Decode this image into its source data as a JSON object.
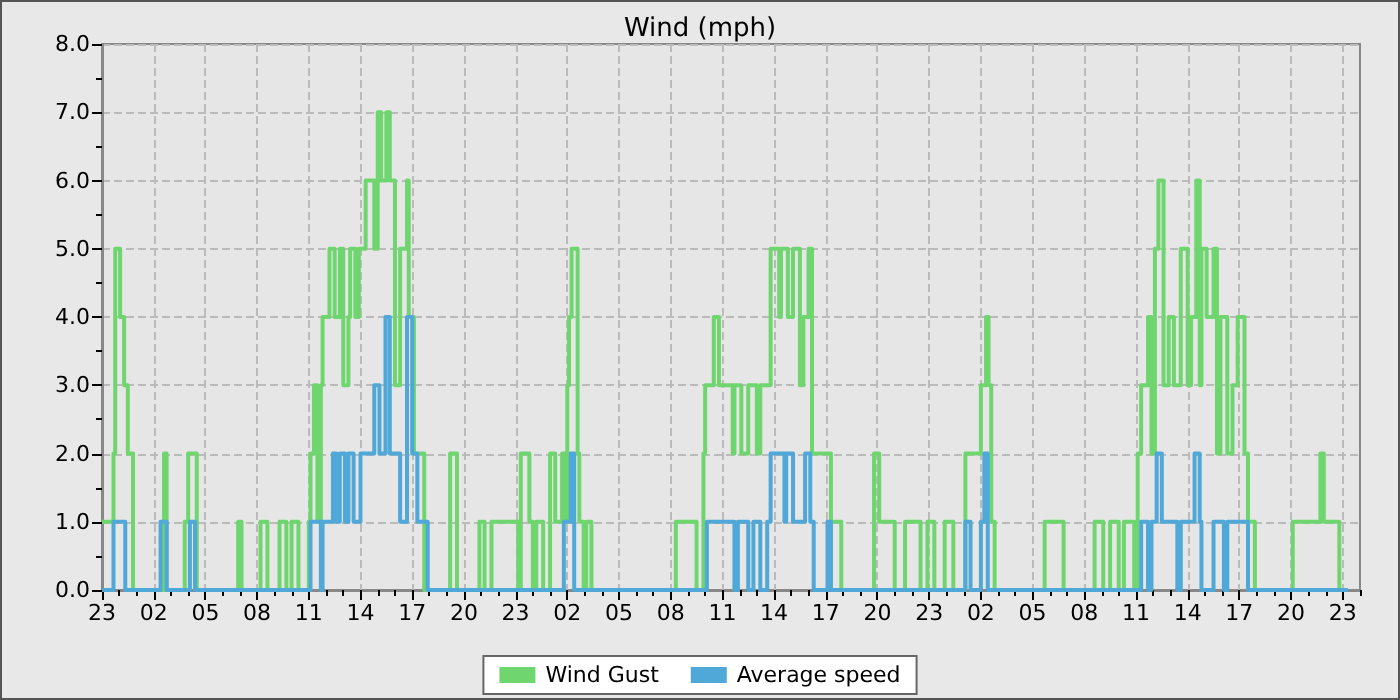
{
  "chart_data": {
    "type": "step",
    "title": "Wind (mph)",
    "xlim": [
      "--01-01T23:00",
      "--01-05T00:00"
    ],
    "ylim": [
      0,
      8
    ],
    "xticks": [
      {
        "value": "--01-01T23:00",
        "label": "23"
      },
      {
        "value": "--01-02T00:00",
        "label": null
      },
      {
        "value": "--01-02T01:00",
        "label": null
      },
      {
        "value": "--01-02T02:00",
        "label": "02"
      },
      {
        "value": "--01-02T03:00",
        "label": null
      },
      {
        "value": "--01-02T04:00",
        "label": null
      },
      {
        "value": "--01-02T05:00",
        "label": "05"
      },
      {
        "value": "--01-02T06:00",
        "label": null
      },
      {
        "value": "--01-02T07:00",
        "label": null
      },
      {
        "value": "--01-02T08:00",
        "label": "08"
      },
      {
        "value": "--01-02T09:00",
        "label": null
      },
      {
        "value": "--01-02T10:00",
        "label": null
      },
      {
        "value": "--01-02T11:00",
        "label": "11"
      },
      {
        "value": "--01-02T12:00",
        "label": null
      },
      {
        "value": "--01-02T13:00",
        "label": null
      },
      {
        "value": "--01-02T14:00",
        "label": "14"
      },
      {
        "value": "--01-02T15:00",
        "label": null
      },
      {
        "value": "--01-02T16:00",
        "label": null
      },
      {
        "value": "--01-02T17:00",
        "label": "17"
      },
      {
        "value": "--01-02T18:00",
        "label": null
      },
      {
        "value": "--01-02T19:00",
        "label": null
      },
      {
        "value": "--01-02T20:00",
        "label": "20"
      },
      {
        "value": "--01-02T21:00",
        "label": null
      },
      {
        "value": "--01-02T22:00",
        "label": null
      },
      {
        "value": "--01-02T23:00",
        "label": "23"
      },
      {
        "value": "--01-03T00:00",
        "label": null
      },
      {
        "value": "--01-03T01:00",
        "label": null
      },
      {
        "value": "--01-03T02:00",
        "label": "02"
      },
      {
        "value": "--01-03T03:00",
        "label": null
      },
      {
        "value": "--01-03T04:00",
        "label": null
      },
      {
        "value": "--01-03T05:00",
        "label": "05"
      },
      {
        "value": "--01-03T06:00",
        "label": null
      },
      {
        "value": "--01-03T07:00",
        "label": null
      },
      {
        "value": "--01-03T08:00",
        "label": "08"
      },
      {
        "value": "--01-03T09:00",
        "label": null
      },
      {
        "value": "--01-03T10:00",
        "label": null
      },
      {
        "value": "--01-03T11:00",
        "label": "11"
      },
      {
        "value": "--01-03T12:00",
        "label": null
      },
      {
        "value": "--01-03T13:00",
        "label": null
      },
      {
        "value": "--01-03T14:00",
        "label": "14"
      },
      {
        "value": "--01-03T15:00",
        "label": null
      },
      {
        "value": "--01-03T16:00",
        "label": null
      },
      {
        "value": "--01-03T17:00",
        "label": "17"
      },
      {
        "value": "--01-03T18:00",
        "label": null
      },
      {
        "value": "--01-03T19:00",
        "label": null
      },
      {
        "value": "--01-03T20:00",
        "label": "20"
      },
      {
        "value": "--01-03T21:00",
        "label": null
      },
      {
        "value": "--01-03T22:00",
        "label": null
      },
      {
        "value": "--01-03T23:00",
        "label": "23"
      },
      {
        "value": "--01-04T00:00",
        "label": null
      },
      {
        "value": "--01-04T01:00",
        "label": null
      },
      {
        "value": "--01-04T02:00",
        "label": "02"
      },
      {
        "value": "--01-04T03:00",
        "label": null
      },
      {
        "value": "--01-04T04:00",
        "label": null
      },
      {
        "value": "--01-04T05:00",
        "label": "05"
      },
      {
        "value": "--01-04T06:00",
        "label": null
      },
      {
        "value": "--01-04T07:00",
        "label": null
      },
      {
        "value": "--01-04T08:00",
        "label": "08"
      },
      {
        "value": "--01-04T09:00",
        "label": null
      },
      {
        "value": "--01-04T10:00",
        "label": null
      },
      {
        "value": "--01-04T11:00",
        "label": "11"
      },
      {
        "value": "--01-04T12:00",
        "label": null
      },
      {
        "value": "--01-04T13:00",
        "label": null
      },
      {
        "value": "--01-04T14:00",
        "label": "14"
      },
      {
        "value": "--01-04T15:00",
        "label": null
      },
      {
        "value": "--01-04T16:00",
        "label": null
      },
      {
        "value": "--01-04T17:00",
        "label": "17"
      },
      {
        "value": "--01-04T18:00",
        "label": null
      },
      {
        "value": "--01-04T19:00",
        "label": null
      },
      {
        "value": "--01-04T20:00",
        "label": "20"
      },
      {
        "value": "--01-04T21:00",
        "label": null
      },
      {
        "value": "--01-04T22:00",
        "label": null
      },
      {
        "value": "--01-04T23:00",
        "label": "23"
      },
      {
        "value": "--01-05T00:00",
        "label": null
      }
    ],
    "yticks": [
      {
        "value": 0,
        "label": "0.0"
      },
      {
        "value": 0.5,
        "label": null
      },
      {
        "value": 1,
        "label": "1.0"
      },
      {
        "value": 1.5,
        "label": null
      },
      {
        "value": 2,
        "label": "2.0"
      },
      {
        "value": 2.5,
        "label": null
      },
      {
        "value": 3,
        "label": "3.0"
      },
      {
        "value": 3.5,
        "label": null
      },
      {
        "value": 4,
        "label": "4.0"
      },
      {
        "value": 4.5,
        "label": null
      },
      {
        "value": 5,
        "label": "5.0"
      },
      {
        "value": 5.5,
        "label": null
      },
      {
        "value": 6,
        "label": "6.0"
      },
      {
        "value": 6.5,
        "label": null
      },
      {
        "value": 7,
        "label": "7.0"
      },
      {
        "value": 7.5,
        "label": null
      },
      {
        "value": 8,
        "label": "8.0"
      }
    ],
    "grid": true,
    "legend": "bottom",
    "line_style": "solid",
    "series": [
      {
        "name": "Wind Gust",
        "color": "#6fd66f",
        "x": [
          "--01-01T23:00",
          "--01-01T23:40",
          "--01-01T23:46",
          "--01-02T00:03",
          "--01-02T00:17",
          "--01-02T00:30",
          "--01-02T00:48",
          "--01-02T02:36",
          "--01-02T02:45",
          "--01-02T03:48",
          "--01-02T04:00",
          "--01-02T04:30",
          "--01-02T06:54",
          "--01-02T07:06",
          "--01-02T08:12",
          "--01-02T08:36",
          "--01-02T09:18",
          "--01-02T09:42",
          "--01-02T10:00",
          "--01-02T10:24",
          "--01-02T11:00",
          "--01-02T11:06",
          "--01-02T11:18",
          "--01-02T11:30",
          "--01-02T11:42",
          "--01-02T11:48",
          "--01-02T12:12",
          "--01-02T12:30",
          "--01-02T12:48",
          "--01-02T13:00",
          "--01-02T13:18",
          "--01-02T13:24",
          "--01-02T13:42",
          "--01-02T13:54",
          "--01-02T14:18",
          "--01-02T14:48",
          "--01-02T15:00",
          "--01-02T15:12",
          "--01-02T15:30",
          "--01-02T15:42",
          "--01-02T16:00",
          "--01-02T16:18",
          "--01-02T16:42",
          "--01-02T16:48",
          "--01-02T17:06",
          "--01-02T17:42",
          "--01-02T19:12",
          "--01-02T19:36",
          "--01-02T20:54",
          "--01-02T21:12",
          "--01-02T21:36",
          "--01-02T23:09",
          "--01-02T23:18",
          "--01-02T23:48",
          "--01-03T00:00",
          "--01-03T00:12",
          "--01-03T00:36",
          "--01-03T01:00",
          "--01-03T01:18",
          "--01-03T01:42",
          "--01-03T01:54",
          "--01-03T02:00",
          "--01-03T02:06",
          "--01-03T02:15",
          "--01-03T02:36",
          "--01-03T02:42",
          "--01-03T02:57",
          "--01-03T03:06",
          "--01-03T03:24",
          "--01-03T08:18",
          "--01-03T09:30",
          "--01-03T09:54",
          "--01-03T10:00",
          "--01-03T10:30",
          "--01-03T10:48",
          "--01-03T11:36",
          "--01-03T11:42",
          "--01-03T12:06",
          "--01-03T12:30",
          "--01-03T13:00",
          "--01-03T13:12",
          "--01-03T13:48",
          "--01-03T14:18",
          "--01-03T14:24",
          "--01-03T14:48",
          "--01-03T15:06",
          "--01-03T15:30",
          "--01-03T15:42",
          "--01-03T16:00",
          "--01-03T16:12",
          "--01-03T17:18",
          "--01-03T17:54",
          "--01-03T19:48",
          "--01-03T20:06",
          "--01-03T21:00",
          "--01-03T21:36",
          "--01-03T22:30",
          "--01-03T22:54",
          "--01-03T23:18",
          "--01-03T23:54",
          "--01-04T00:24",
          "--01-04T01:06",
          "--01-04T02:00",
          "--01-04T02:18",
          "--01-04T02:27",
          "--01-04T02:36",
          "--01-04T02:48",
          "--01-04T05:42",
          "--01-04T06:48",
          "--01-04T08:36",
          "--01-04T09:06",
          "--01-04T09:30",
          "--01-04T10:00",
          "--01-04T10:18",
          "--01-04T10:54",
          "--01-04T11:06",
          "--01-04T11:18",
          "--01-04T11:42",
          "--01-04T11:54",
          "--01-04T12:06",
          "--01-04T12:18",
          "--01-04T12:36",
          "--01-04T12:54",
          "--01-04T13:12",
          "--01-04T13:36",
          "--01-04T14:00",
          "--01-04T14:12",
          "--01-04T14:30",
          "--01-04T14:42",
          "--01-04T14:48",
          "--01-04T15:06",
          "--01-04T15:30",
          "--01-04T15:42",
          "--01-04T15:54",
          "--01-04T16:18",
          "--01-04T16:36",
          "--01-04T16:54",
          "--01-04T17:18",
          "--01-04T17:30",
          "--01-04T17:54",
          "--01-04T20:06",
          "--01-04T21:42",
          "--01-04T21:54",
          "--01-04T22:48",
          "--01-04T23:18"
        ],
        "values": [
          1,
          2,
          5,
          4,
          3,
          2,
          0,
          2,
          0,
          1,
          2,
          0,
          1,
          0,
          1,
          0,
          1,
          0,
          1,
          0,
          1,
          2,
          3,
          1,
          3,
          4,
          5,
          4,
          5,
          3,
          4,
          5,
          4,
          5,
          6,
          5,
          7,
          6,
          7,
          6,
          3,
          5,
          6,
          4,
          2,
          0,
          2,
          0,
          1,
          0,
          1,
          0,
          2,
          1,
          0,
          1,
          0,
          2,
          1,
          2,
          1,
          3,
          4,
          5,
          2,
          1,
          0,
          1,
          0,
          1,
          0,
          2,
          3,
          4,
          3,
          2,
          3,
          2,
          3,
          2,
          3,
          5,
          4,
          5,
          4,
          5,
          3,
          4,
          5,
          2,
          1,
          0,
          2,
          1,
          0,
          1,
          0,
          1,
          0,
          1,
          0,
          2,
          3,
          4,
          3,
          1,
          0,
          1,
          0,
          1,
          0,
          1,
          0,
          1,
          0,
          2,
          3,
          4,
          2,
          5,
          6,
          3,
          4,
          3,
          5,
          3,
          4,
          6,
          3,
          5,
          4,
          5,
          2,
          4,
          2,
          3,
          4,
          2,
          1,
          0,
          1,
          2,
          1,
          0,
          0
        ]
      },
      {
        "name": "Average speed",
        "color": "#4fa8d8",
        "x": [
          "--01-01T23:00",
          "--01-01T23:40",
          "--01-02T00:21",
          "--01-02T02:24",
          "--01-02T02:45",
          "--01-02T04:06",
          "--01-02T04:24",
          "--01-02T11:06",
          "--01-02T11:42",
          "--01-02T11:48",
          "--01-02T12:24",
          "--01-02T12:36",
          "--01-02T12:48",
          "--01-02T13:06",
          "--01-02T13:18",
          "--01-02T13:36",
          "--01-02T14:00",
          "--01-02T14:48",
          "--01-02T15:06",
          "--01-02T15:27",
          "--01-02T15:42",
          "--01-02T16:18",
          "--01-02T16:42",
          "--01-02T17:00",
          "--01-02T17:18",
          "--01-02T17:54",
          "--01-03T01:48",
          "--01-03T02:12",
          "--01-03T02:24",
          "--01-03T10:06",
          "--01-03T11:42",
          "--01-03T11:54",
          "--01-03T12:30",
          "--01-03T12:48",
          "--01-03T13:12",
          "--01-03T13:36",
          "--01-03T13:48",
          "--01-03T14:36",
          "--01-03T14:42",
          "--01-03T15:06",
          "--01-03T15:48",
          "--01-03T16:06",
          "--01-03T16:18",
          "--01-03T17:06",
          "--01-03T17:18",
          "--01-04T01:06",
          "--01-04T01:24",
          "--01-04T02:00",
          "--01-04T02:12",
          "--01-04T02:24",
          "--01-04T11:18",
          "--01-04T11:42",
          "--01-04T11:54",
          "--01-04T12:12",
          "--01-04T12:30",
          "--01-04T13:24",
          "--01-04T13:36",
          "--01-04T14:24",
          "--01-04T14:42",
          "--01-04T14:48",
          "--01-04T15:30",
          "--01-04T16:06",
          "--01-04T16:18",
          "--01-04T17:30",
          "--01-04T23:18"
        ],
        "values": [
          0,
          1,
          0,
          1,
          0,
          1,
          0,
          1,
          0,
          1,
          2,
          1,
          2,
          1,
          2,
          1,
          2,
          3,
          2,
          4,
          2,
          1,
          4,
          2,
          1,
          0,
          1,
          2,
          0,
          1,
          0,
          1,
          0,
          1,
          0,
          1,
          2,
          1,
          2,
          1,
          2,
          1,
          0,
          1,
          0,
          1,
          0,
          1,
          2,
          0,
          1,
          0,
          1,
          2,
          1,
          0,
          1,
          2,
          1,
          0,
          1,
          0,
          1,
          0,
          0
        ]
      }
    ]
  }
}
